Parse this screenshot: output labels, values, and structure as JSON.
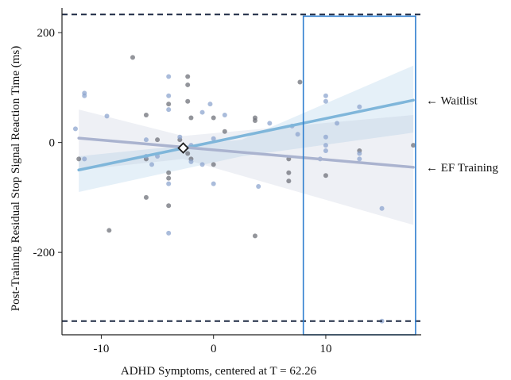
{
  "chart_data": {
    "type": "scatter",
    "xlabel": "ADHD Symptoms, centered at T = 62.26",
    "ylabel": "Post-Training Residual Stop Signal Reaction Time (ms)",
    "xlim": [
      -13.5,
      18.5
    ],
    "ylim": [
      -350,
      245
    ],
    "x_ticks": [
      -10,
      0,
      10
    ],
    "x_tick_labels": [
      "-10",
      "0",
      "10"
    ],
    "y_ticks": [
      -200,
      0,
      200
    ],
    "y_tick_labels": [
      "-200",
      "0",
      "200"
    ],
    "grid": false,
    "reference_lines": [
      {
        "axis": "y",
        "value": 233,
        "style": "dashed",
        "color": "#1e2a44"
      },
      {
        "axis": "y",
        "value": -325,
        "style": "dashed",
        "color": "#1e2a44"
      }
    ],
    "highlight_box": {
      "x": [
        8,
        18
      ],
      "y": [
        -350,
        230
      ],
      "color": "#2f7fcf"
    },
    "marker": {
      "x": -2.7,
      "y": -10,
      "shape": "diamond"
    },
    "series": [
      {
        "name": "Waitlist",
        "color": "#7fb6da",
        "line": {
          "x": [
            -12,
            17.8
          ],
          "y": [
            -50,
            77
          ]
        },
        "band": {
          "x": [
            -12,
            2.5,
            17.8
          ],
          "upper": [
            -25,
            5,
            140
          ],
          "lower": [
            -90,
            -25,
            18
          ]
        }
      },
      {
        "name": "EF Training",
        "color": "#aab3cf",
        "line": {
          "x": [
            -12,
            17.8
          ],
          "y": [
            8,
            -45
          ]
        },
        "band": {
          "x": [
            -12,
            -2.7,
            17.8
          ],
          "upper": [
            60,
            12,
            50
          ],
          "lower": [
            -50,
            -30,
            -150
          ]
        }
      }
    ],
    "points_blue": [
      [
        -11.5,
        90
      ],
      [
        -11.5,
        85
      ],
      [
        -9.5,
        48
      ],
      [
        -12.3,
        25
      ],
      [
        -11.5,
        -30
      ],
      [
        -4,
        120
      ],
      [
        -4,
        85
      ],
      [
        -4,
        60
      ],
      [
        -6,
        5
      ],
      [
        -6,
        -25
      ],
      [
        -5,
        -25
      ],
      [
        -3,
        10
      ],
      [
        -2,
        -5
      ],
      [
        -2,
        -35
      ],
      [
        -1,
        55
      ],
      [
        -0.3,
        70
      ],
      [
        1,
        50
      ],
      [
        0,
        7
      ],
      [
        -1,
        -40
      ],
      [
        0,
        -75
      ],
      [
        -4,
        -165
      ],
      [
        -4,
        -75
      ],
      [
        -5.5,
        -40
      ],
      [
        4,
        -80
      ],
      [
        5,
        35
      ],
      [
        7,
        30
      ],
      [
        9.5,
        -30
      ],
      [
        10,
        85
      ],
      [
        10,
        75
      ],
      [
        10,
        10
      ],
      [
        10,
        -5
      ],
      [
        10,
        -15
      ],
      [
        11,
        35
      ],
      [
        13,
        65
      ],
      [
        13,
        -20
      ],
      [
        13,
        -30
      ],
      [
        15,
        -120
      ],
      [
        15,
        -325
      ],
      [
        7.5,
        15
      ]
    ],
    "points_gray": [
      [
        -12,
        -30
      ],
      [
        -9.3,
        -160
      ],
      [
        -7.2,
        155
      ],
      [
        -6,
        -100
      ],
      [
        -6,
        50
      ],
      [
        -6,
        -30
      ],
      [
        -5,
        5
      ],
      [
        -4,
        70
      ],
      [
        -4,
        -55
      ],
      [
        -4,
        -65
      ],
      [
        -4,
        -115
      ],
      [
        -3,
        5
      ],
      [
        -2.3,
        120
      ],
      [
        -2.3,
        105
      ],
      [
        -2.3,
        75
      ],
      [
        -2.3,
        -20
      ],
      [
        -2,
        45
      ],
      [
        -2,
        -30
      ],
      [
        0,
        45
      ],
      [
        0,
        -40
      ],
      [
        1,
        20
      ],
      [
        3.7,
        45
      ],
      [
        3.7,
        40
      ],
      [
        3.7,
        -170
      ],
      [
        6.7,
        -30
      ],
      [
        6.7,
        -55
      ],
      [
        6.7,
        -70
      ],
      [
        7.7,
        110
      ],
      [
        10,
        -60
      ],
      [
        13,
        -15
      ],
      [
        17.8,
        -5
      ]
    ]
  }
}
